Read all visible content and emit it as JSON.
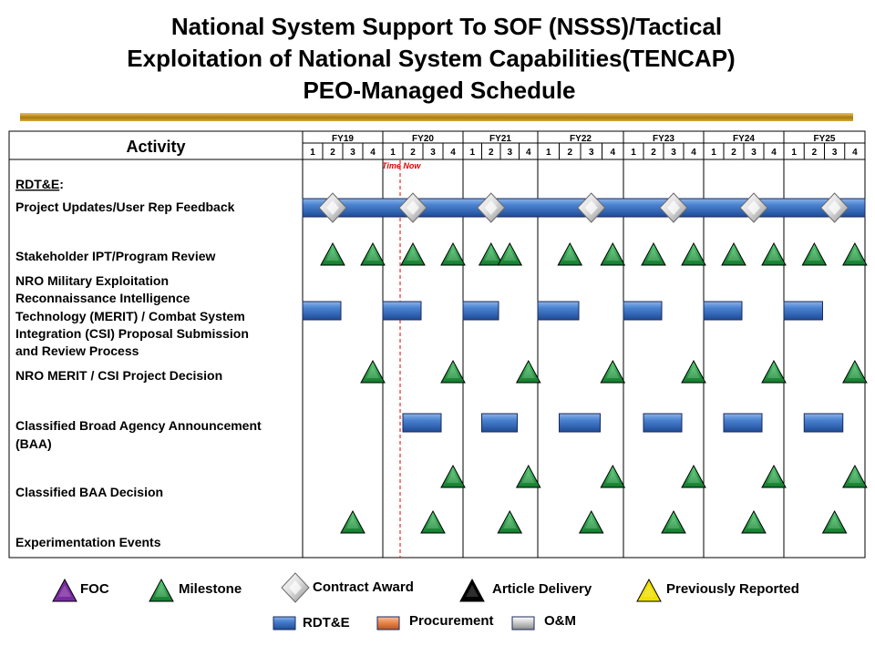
{
  "title": {
    "line1": "National System Support To SOF (NSSS)/Tactical",
    "line2": "Exploitation of National System Capabilities(TENCAP)",
    "line3": "PEO-Managed Schedule"
  },
  "chart_data": {
    "type": "gantt",
    "activity_header": "Activity",
    "fiscal_years": [
      "FY19",
      "FY20",
      "FY21",
      "FY22",
      "FY23",
      "FY24",
      "FY25"
    ],
    "quarters": [
      "1",
      "2",
      "3",
      "4"
    ],
    "time_now_label": "Time Now",
    "time_now_position": "FY20 Q2",
    "section_label": "RDT&E",
    "section_colon": ":",
    "rows": [
      {
        "label": [
          "Project Updates/User Rep Feedback"
        ],
        "bars": [
          {
            "start": "FY19 Q1",
            "end": "FY25 Q4",
            "type": "RDT&E"
          }
        ],
        "contract_awards": [
          "FY19 Q2",
          "FY20 Q2",
          "FY21 Q2",
          "FY22 Q3",
          "FY23 Q3",
          "FY24 Q3",
          "FY25 Q3"
        ],
        "milestones": []
      },
      {
        "label": [
          "Stakeholder IPT/Program Review"
        ],
        "bars": [],
        "contract_awards": [],
        "milestones": [
          "FY19 Q2",
          "FY19 Q4",
          "FY20 Q2",
          "FY20 Q4",
          "FY21 Q2",
          "FY21 Q3",
          "FY22 Q2",
          "FY22 Q4",
          "FY23 Q2",
          "FY23 Q4",
          "FY24 Q2",
          "FY24 Q4",
          "FY25 Q2",
          "FY25 Q4"
        ]
      },
      {
        "label": [
          "NRO Military Exploitation",
          "Reconnaissance Intelligence",
          "Technology (MERIT) / Combat System",
          "Integration (CSI) Proposal Submission",
          "and Review Process"
        ],
        "bars": [
          {
            "start": "FY19 Q1",
            "end": "FY19 Q2",
            "type": "RDT&E"
          },
          {
            "start": "FY20 Q1",
            "end": "FY20 Q2",
            "type": "RDT&E"
          },
          {
            "start": "FY21 Q1",
            "end": "FY21 Q2",
            "type": "RDT&E"
          },
          {
            "start": "FY22 Q1",
            "end": "FY22 Q2",
            "type": "RDT&E"
          },
          {
            "start": "FY23 Q1",
            "end": "FY23 Q2",
            "type": "RDT&E"
          },
          {
            "start": "FY24 Q1",
            "end": "FY24 Q2",
            "type": "RDT&E"
          },
          {
            "start": "FY25 Q1",
            "end": "FY25 Q2",
            "type": "RDT&E"
          }
        ],
        "contract_awards": [],
        "milestones": []
      },
      {
        "label": [
          "NRO MERIT / CSI Project Decision"
        ],
        "bars": [],
        "contract_awards": [],
        "milestones": [
          "FY19 Q4",
          "FY20 Q4",
          "FY21 Q4",
          "FY22 Q4",
          "FY23 Q4",
          "FY24 Q4",
          "FY25 Q4"
        ]
      },
      {
        "label": [
          "Classified Broad Agency Announcement",
          "(BAA)"
        ],
        "bars": [
          {
            "start": "FY20 Q2",
            "end": "FY20 Q3",
            "type": "RDT&E"
          },
          {
            "start": "FY21 Q2",
            "end": "FY21 Q3",
            "type": "RDT&E"
          },
          {
            "start": "FY22 Q2",
            "end": "FY22 Q3",
            "type": "RDT&E"
          },
          {
            "start": "FY23 Q2",
            "end": "FY23 Q3",
            "type": "RDT&E"
          },
          {
            "start": "FY24 Q2",
            "end": "FY24 Q3",
            "type": "RDT&E"
          },
          {
            "start": "FY25 Q2",
            "end": "FY25 Q3",
            "type": "RDT&E"
          }
        ],
        "contract_awards": [],
        "milestones": []
      },
      {
        "label": [
          "Classified BAA Decision"
        ],
        "bars": [],
        "contract_awards": [],
        "milestones": [
          "FY20 Q4",
          "FY21 Q4",
          "FY22 Q4",
          "FY23 Q4",
          "FY24 Q4",
          "FY25 Q4"
        ]
      },
      {
        "label": [
          "Experimentation Events"
        ],
        "bars": [],
        "contract_awards": [],
        "milestones": [
          "FY19 Q3",
          "FY20 Q3",
          "FY21 Q3",
          "FY22 Q3",
          "FY23 Q3",
          "FY24 Q3",
          "FY25 Q3"
        ]
      }
    ]
  },
  "legend": {
    "foc": "FOC",
    "milestone": "Milestone",
    "contract_award": "Contract Award",
    "article_delivery": "Article Delivery",
    "previously_reported": "Previously Reported",
    "rdte": "RDT&E",
    "procurement": "Procurement",
    "om": "O&M"
  },
  "colors": {
    "bar_rdte": "#3e78c8",
    "bar_procurement": "#e8844c",
    "bar_om": "#c8c8c8",
    "milestone": "#1a9a3a",
    "foc": "#7a2aa0",
    "article_delivery": "#000000",
    "previously_reported": "#f0e000",
    "time_now": "#e00000",
    "title_rule": "#c89418"
  }
}
